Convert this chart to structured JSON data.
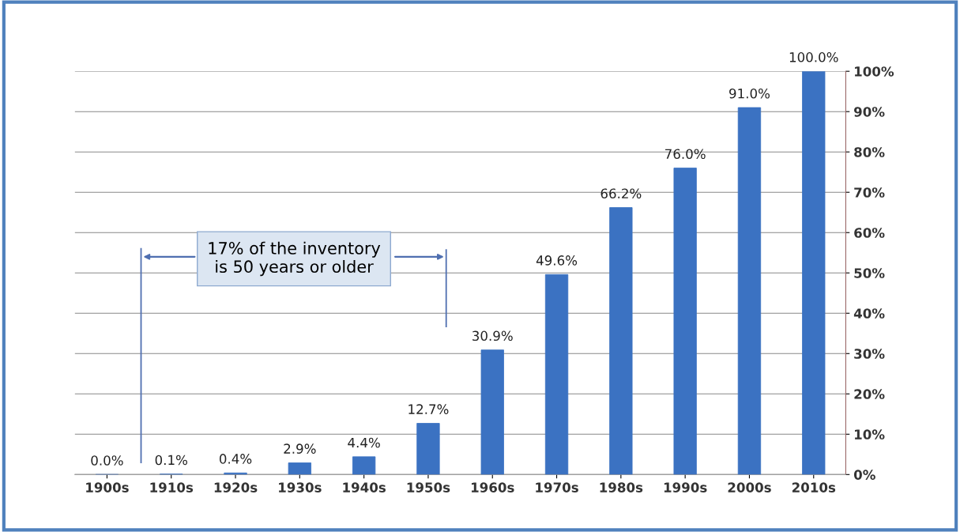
{
  "chart_data": {
    "type": "bar",
    "categories": [
      "1900s",
      "1910s",
      "1920s",
      "1930s",
      "1940s",
      "1950s",
      "1960s",
      "1970s",
      "1980s",
      "1990s",
      "2000s",
      "2010s"
    ],
    "values": [
      0.0,
      0.1,
      0.4,
      2.9,
      4.4,
      12.7,
      30.9,
      49.6,
      66.2,
      76.0,
      91.0,
      100.0
    ],
    "value_labels": [
      "0.0%",
      "0.1%",
      "0.4%",
      "2.9%",
      "4.4%",
      "12.7%",
      "30.9%",
      "49.6%",
      "66.2%",
      "76.0%",
      "91.0%",
      "100.0%"
    ],
    "color": "#3b72c2",
    "ylim": [
      0,
      100
    ],
    "yticks": [
      {
        "value": 0,
        "label": "0%"
      },
      {
        "value": 10,
        "label": "10%"
      },
      {
        "value": 20,
        "label": "20%"
      },
      {
        "value": 30,
        "label": "30%"
      },
      {
        "value": 40,
        "label": "40%"
      },
      {
        "value": 50,
        "label": "50%"
      },
      {
        "value": 60,
        "label": "60%"
      },
      {
        "value": 70,
        "label": "70%"
      },
      {
        "value": 80,
        "label": "80%"
      },
      {
        "value": 90,
        "label": "90%"
      },
      {
        "value": 100,
        "label": "100%"
      }
    ],
    "grid": "y",
    "annotations": [
      "17% of the inventory\nis 50 years or older"
    ]
  }
}
